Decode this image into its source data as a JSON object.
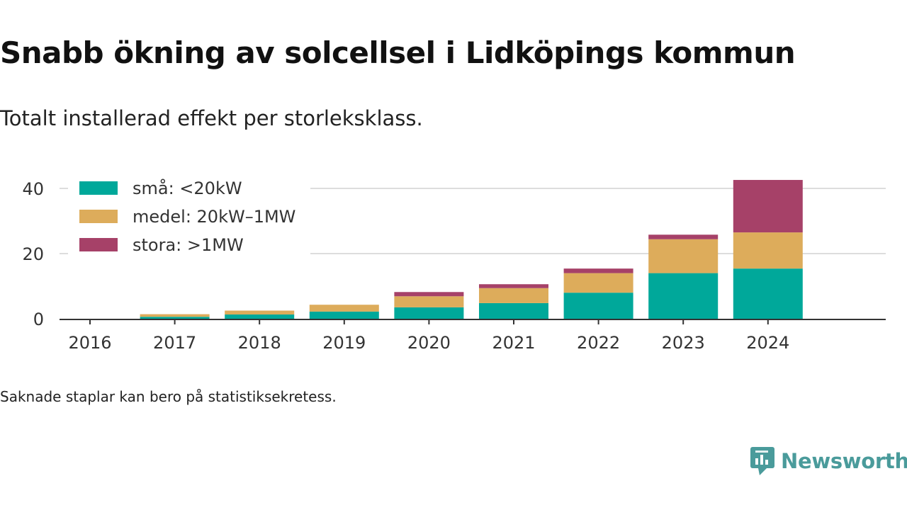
{
  "title": "Snabb ökning av solcellsel i Lidköpings kommun",
  "subtitle": "Totalt installerad effekt per storleksklass.",
  "note": "Saknade staplar kan bero på statistiksekretess.",
  "brand": {
    "name": "Newsworthy",
    "color": "#4a9b9b"
  },
  "chart_data": {
    "type": "bar",
    "stacked": true,
    "categories": [
      "2016",
      "2017",
      "2018",
      "2019",
      "2020",
      "2021",
      "2022",
      "2023",
      "2024"
    ],
    "series": [
      {
        "name": "små: <20kW",
        "color": "#00a89a",
        "values": [
          0,
          0.6,
          1.3,
          2.2,
          3.5,
          4.8,
          8.0,
          14.0,
          15.4
        ]
      },
      {
        "name": "medel: 20kW–1MW",
        "color": "#ddac5b",
        "values": [
          0,
          0.8,
          1.2,
          2.1,
          3.4,
          4.6,
          6.0,
          10.4,
          11.1
        ]
      },
      {
        "name": "stora: >1MW",
        "color": "#a64168",
        "values": [
          0,
          0,
          0,
          0,
          1.3,
          1.2,
          1.4,
          1.4,
          16.1
        ]
      }
    ],
    "yticks": [
      0,
      20,
      40
    ],
    "ylim": [
      0,
      45
    ],
    "xlabel": "",
    "ylabel": "",
    "grid": "horizontal",
    "legend_position": "top-left"
  }
}
